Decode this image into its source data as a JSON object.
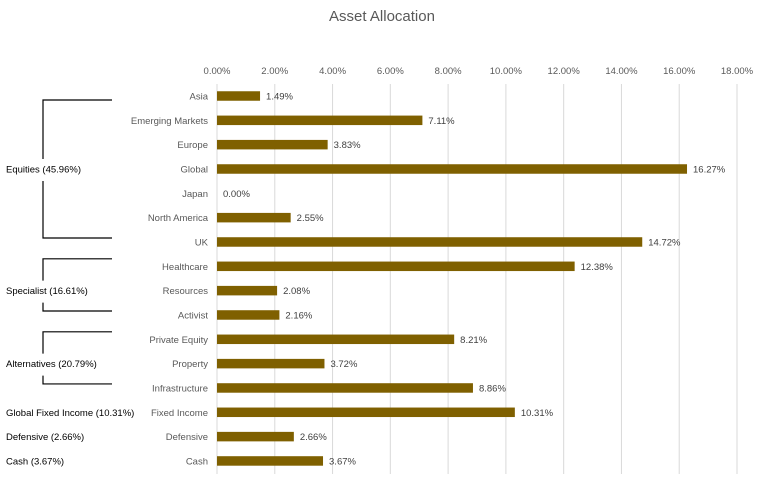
{
  "chart_data": {
    "type": "bar",
    "orientation": "horizontal",
    "title": "Asset Allocation",
    "xlabel": "",
    "ylabel": "",
    "xlim": [
      0,
      18
    ],
    "x_ticks": [
      "0.00%",
      "2.00%",
      "4.00%",
      "6.00%",
      "8.00%",
      "10.00%",
      "12.00%",
      "14.00%",
      "16.00%",
      "18.00%"
    ],
    "x_tick_values": [
      0,
      2,
      4,
      6,
      8,
      10,
      12,
      14,
      16,
      18
    ],
    "grid": true,
    "bar_color": "#7f6000",
    "categories": [
      "Asia",
      "Emerging Markets",
      "Europe",
      "Global",
      "Japan",
      "North America",
      "UK",
      "Healthcare",
      "Resources",
      "Activist",
      "Private Equity",
      "Property",
      "Infrastructure",
      "Fixed Income",
      "Defensive",
      "Cash"
    ],
    "values": [
      1.49,
      7.11,
      3.83,
      16.27,
      0.0,
      2.55,
      14.72,
      12.38,
      2.08,
      2.16,
      8.21,
      3.72,
      8.86,
      10.31,
      2.66,
      3.67
    ],
    "value_labels": [
      "1.49%",
      "7.11%",
      "3.83%",
      "16.27%",
      "0.00%",
      "2.55%",
      "14.72%",
      "12.38%",
      "2.08%",
      "2.16%",
      "8.21%",
      "3.72%",
      "8.86%",
      "10.31%",
      "2.66%",
      "3.67%"
    ],
    "groups": [
      {
        "label": "Equities (45.96%)",
        "first": 0,
        "last": 6,
        "bracket": true
      },
      {
        "label": "Specialist (16.61%)",
        "first": 7,
        "last": 9,
        "bracket": true
      },
      {
        "label": "Alternatives (20.79%)",
        "first": 10,
        "last": 12,
        "bracket": true
      },
      {
        "label": "Global Fixed Income (10.31%)",
        "first": 13,
        "last": 13,
        "bracket": false
      },
      {
        "label": "Defensive (2.66%)",
        "first": 14,
        "last": 14,
        "bracket": false
      },
      {
        "label": "Cash (3.67%)",
        "first": 15,
        "last": 15,
        "bracket": false
      }
    ]
  }
}
